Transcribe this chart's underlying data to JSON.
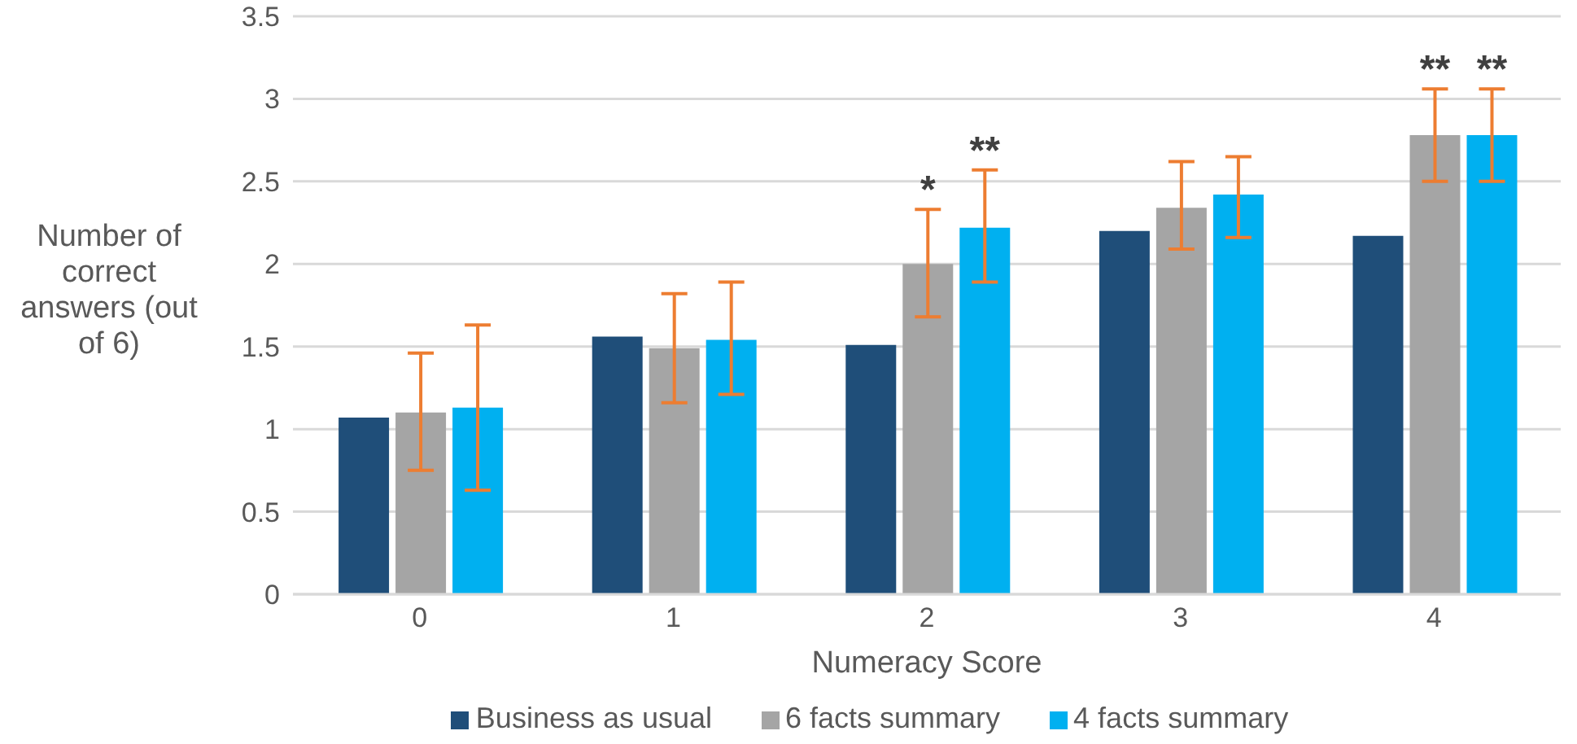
{
  "chart_data": {
    "type": "bar",
    "xlabel": "Numeracy Score",
    "ylabel": "Number of correct answers (out of 6)",
    "categories": [
      "0",
      "1",
      "2",
      "3",
      "4"
    ],
    "series": [
      {
        "name": "Business as usual",
        "color": "#1f4e79",
        "values": [
          1.07,
          1.56,
          1.51,
          2.2,
          2.17
        ]
      },
      {
        "name": "6 facts summary",
        "color": "#a5a5a5",
        "values": [
          1.1,
          1.49,
          2.0,
          2.34,
          2.78
        ],
        "errors": [
          [
            0.75,
            1.46
          ],
          [
            1.16,
            1.82
          ],
          [
            1.68,
            2.33
          ],
          [
            2.09,
            2.62
          ],
          [
            2.5,
            3.06
          ]
        ]
      },
      {
        "name": "4 facts summary",
        "color": "#00b0f0",
        "values": [
          1.13,
          1.54,
          2.22,
          2.42,
          2.78
        ],
        "errors": [
          [
            0.63,
            1.63
          ],
          [
            1.21,
            1.89
          ],
          [
            1.89,
            2.57
          ],
          [
            2.16,
            2.65
          ],
          [
            2.5,
            3.06
          ]
        ]
      }
    ],
    "ylim": [
      0,
      3.5
    ],
    "yticks": [
      0,
      0.5,
      1,
      1.5,
      2,
      2.5,
      3,
      3.5
    ],
    "grid": "y",
    "legend": "bottom",
    "annotations": [
      {
        "text": "*",
        "x": "2",
        "y": 2.0
      },
      {
        "text": "**",
        "x": "2",
        "y": 2.22
      },
      {
        "text": "**",
        "x": "4",
        "y": 2.78
      },
      {
        "text": "**",
        "x": "4",
        "y": 2.78
      }
    ]
  }
}
